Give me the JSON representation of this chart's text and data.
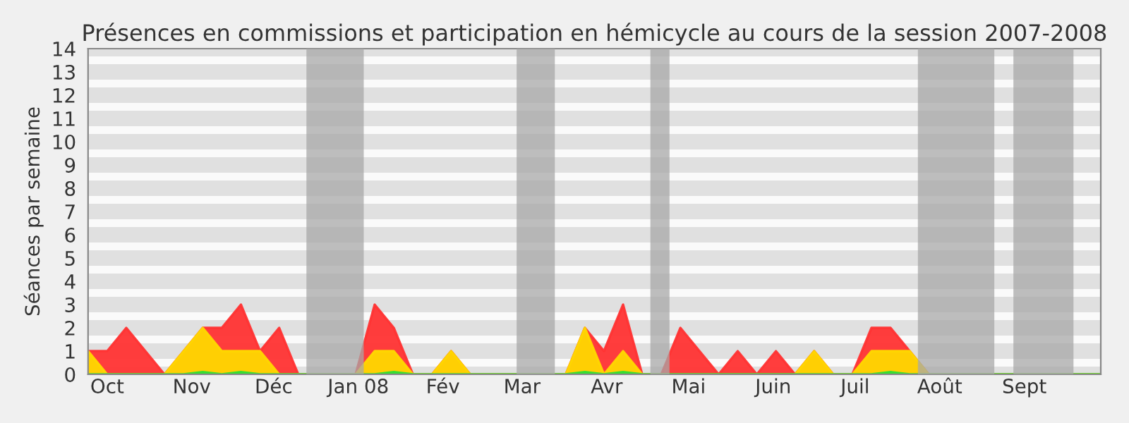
{
  "chart_data": {
    "type": "area",
    "title": "Présences en commissions et participation en hémicycle au cours de la session 2007-2008",
    "ylabel": "Séances par semaine",
    "x": [
      "2007-09-24",
      "2007-10-01",
      "2007-10-08",
      "2007-10-15",
      "2007-10-22",
      "2007-10-29",
      "2007-11-05",
      "2007-11-12",
      "2007-11-19",
      "2007-11-26",
      "2007-12-03",
      "2007-12-10",
      "2007-12-17",
      "2007-12-24",
      "2007-12-31",
      "2008-01-07",
      "2008-01-14",
      "2008-01-21",
      "2008-01-28",
      "2008-02-04",
      "2008-02-11",
      "2008-02-18",
      "2008-02-25",
      "2008-03-03",
      "2008-03-10",
      "2008-03-17",
      "2008-03-24",
      "2008-03-31",
      "2008-04-07",
      "2008-04-14",
      "2008-04-21",
      "2008-04-28",
      "2008-05-05",
      "2008-05-12",
      "2008-05-19",
      "2008-05-26",
      "2008-06-02",
      "2008-06-09",
      "2008-06-16",
      "2008-06-23",
      "2008-06-30",
      "2008-07-07",
      "2008-07-14",
      "2008-07-21",
      "2008-07-28",
      "2008-08-04",
      "2008-08-11",
      "2008-08-18",
      "2008-08-25",
      "2008-09-01",
      "2008-09-08",
      "2008-09-15",
      "2008-09-22",
      "2008-09-29"
    ],
    "series": [
      {
        "color": "#ff3333",
        "values": [
          1,
          1,
          2,
          1,
          0,
          1,
          2,
          2,
          3,
          1,
          2,
          0,
          0,
          0,
          0,
          3,
          2,
          0,
          0,
          1,
          0,
          0,
          0,
          0,
          0,
          0,
          2,
          1,
          3,
          0,
          0,
          2,
          1,
          0,
          1,
          0,
          1,
          0,
          1,
          0,
          0,
          2,
          2,
          1,
          0,
          0,
          0,
          0,
          0,
          0,
          0,
          0,
          0,
          0
        ]
      },
      {
        "color": "#ffd700",
        "values": [
          1,
          0,
          0,
          0,
          0,
          1,
          2,
          1,
          1,
          1,
          0,
          0,
          0,
          0,
          0,
          1,
          1,
          0,
          0,
          1,
          0,
          0,
          0,
          0,
          0,
          0,
          2,
          0,
          1,
          0,
          0,
          0,
          0,
          0,
          0,
          0,
          0,
          0,
          1,
          0,
          0,
          1,
          1,
          1,
          0,
          0,
          0,
          0,
          0,
          0,
          0,
          0,
          0,
          0
        ]
      },
      {
        "color": "#33dd33",
        "values": [
          0,
          0,
          0,
          0,
          0,
          0,
          0.1,
          0,
          0.1,
          0,
          0,
          0,
          0,
          0,
          0,
          0,
          0.1,
          0,
          0,
          0,
          0,
          0,
          0,
          0,
          0,
          0,
          0.1,
          0,
          0.1,
          0,
          0,
          0,
          0,
          0,
          0,
          0,
          0,
          0,
          0,
          0,
          0,
          0,
          0.1,
          0,
          0,
          0,
          0,
          0,
          0,
          0,
          0,
          0,
          0,
          0
        ]
      }
    ],
    "bands": [
      {
        "axis": "x",
        "from": "2007-12-13",
        "to": "2008-01-03",
        "color": "#a8a8a8"
      },
      {
        "axis": "x",
        "from": "2008-02-28",
        "to": "2008-03-13",
        "color": "#a8a8a8"
      },
      {
        "axis": "x",
        "from": "2008-04-17",
        "to": "2008-04-24",
        "color": "#a8a8a8"
      },
      {
        "axis": "x",
        "from": "2008-07-24",
        "to": "2008-08-21",
        "color": "#a8a8a8"
      },
      {
        "axis": "x",
        "from": "2008-08-28",
        "to": "2008-09-19",
        "color": "#a8a8a8"
      }
    ],
    "xlim": [
      "2007-09-24",
      "2008-09-29"
    ],
    "xticks": [
      {
        "value": "2007-10-01",
        "label": "Oct"
      },
      {
        "value": "2007-11-01",
        "label": "Nov"
      },
      {
        "value": "2007-12-01",
        "label": "Déc"
      },
      {
        "value": "2008-01-01",
        "label": "Jan 08"
      },
      {
        "value": "2008-02-01",
        "label": "Fév"
      },
      {
        "value": "2008-03-01",
        "label": "Mar"
      },
      {
        "value": "2008-04-01",
        "label": "Avr"
      },
      {
        "value": "2008-05-01",
        "label": "Mai"
      },
      {
        "value": "2008-06-01",
        "label": "Juin"
      },
      {
        "value": "2008-07-01",
        "label": "Juil"
      },
      {
        "value": "2008-08-01",
        "label": "Août"
      },
      {
        "value": "2008-09-01",
        "label": "Sept"
      }
    ],
    "ylim": [
      0,
      14
    ],
    "yticks": [
      0,
      1,
      2,
      3,
      4,
      5,
      6,
      7,
      8,
      9,
      10,
      11,
      12,
      13,
      14
    ],
    "grid": "y",
    "legend": false
  }
}
